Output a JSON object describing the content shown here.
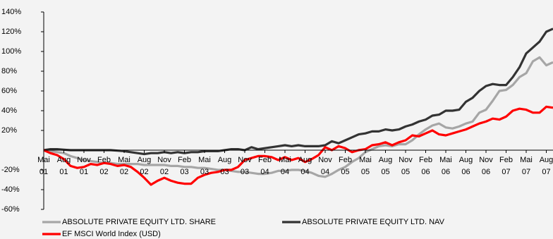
{
  "chart_data": {
    "type": "line",
    "categories": [
      "Mai",
      null,
      null,
      "Aug",
      null,
      null,
      "Nov",
      null,
      null,
      "Feb",
      null,
      null,
      "Mai",
      null,
      null,
      "Aug",
      null,
      null,
      "Nov",
      null,
      null,
      "Feb",
      null,
      null,
      "Mai",
      null,
      null,
      "Aug",
      null,
      null,
      "Nov",
      null,
      null,
      "Feb",
      null,
      null,
      "Mai",
      null,
      null,
      "Aug",
      null,
      null,
      "Nov",
      null,
      null,
      "Feb",
      null,
      null,
      "Mai",
      null,
      null,
      "Aug",
      null,
      null,
      "Nov",
      null,
      null,
      "Feb",
      null,
      null,
      "Mai",
      null,
      null,
      "Aug",
      null,
      null,
      "Nov",
      null,
      null,
      "Feb",
      null,
      null,
      "Mai",
      null,
      null,
      "Aug",
      null
    ],
    "category_years": [
      "01",
      null,
      null,
      "01",
      null,
      null,
      "01",
      null,
      null,
      "02",
      null,
      null,
      "02",
      null,
      null,
      "02",
      null,
      null,
      "02",
      null,
      null,
      "03",
      null,
      null,
      "03",
      null,
      null,
      "03",
      null,
      null,
      "03",
      null,
      null,
      "04",
      null,
      null,
      "04",
      null,
      null,
      "04",
      null,
      null,
      "04",
      null,
      null,
      "05",
      null,
      null,
      "05",
      null,
      null,
      "05",
      null,
      null,
      "05",
      null,
      null,
      "06",
      null,
      null,
      "06",
      null,
      null,
      "06",
      null,
      null,
      "06",
      null,
      null,
      "07",
      null,
      null,
      "07",
      null,
      null,
      "07",
      null
    ],
    "series": [
      {
        "name": "ABSOLUTE PRIVATE EQUITY LTD. SHARE",
        "color": "#a6a6a6",
        "values": [
          0,
          -1,
          -2,
          -3,
          -6,
          -8,
          -10,
          -11,
          -12,
          -13,
          -13,
          -14,
          -14,
          -14,
          -14,
          -15,
          -15,
          -15,
          -15,
          -16,
          -16,
          -17,
          -17,
          -18,
          -18,
          -19,
          -20,
          -20,
          -21,
          -22,
          -22,
          -23,
          -24,
          -24,
          -23,
          -21,
          -21,
          -20,
          -20,
          -21,
          -23,
          -26,
          -27,
          -24,
          -20,
          -17,
          -12,
          -8,
          -2,
          1,
          4,
          5,
          4,
          6,
          6,
          10,
          16,
          21,
          25,
          27,
          23,
          22,
          24,
          27,
          29,
          38,
          41,
          50,
          60,
          61,
          66,
          74,
          78,
          90,
          94,
          86,
          89
        ]
      },
      {
        "name": "ABSOLUTE PRIVATE EQUITY LTD. NAV",
        "color": "#333333",
        "values": [
          0,
          1,
          1,
          0.5,
          0,
          0,
          0,
          0,
          0,
          0,
          0,
          -0.5,
          -1,
          -2,
          -3,
          -4,
          -3,
          -3,
          -2,
          -3,
          -2,
          -3,
          -2,
          -2,
          -1,
          -1,
          -1,
          0,
          1,
          1,
          0,
          3,
          1,
          2,
          3,
          4,
          5,
          4,
          5,
          4,
          4,
          4,
          5,
          9,
          7,
          10,
          13,
          16,
          17,
          19,
          19,
          21,
          20,
          21,
          24,
          26,
          29,
          31,
          35,
          36,
          40,
          40,
          41,
          49,
          53,
          60,
          65,
          67,
          66,
          66,
          74,
          84,
          98,
          104,
          110,
          120,
          123
        ]
      },
      {
        "name": "EF MSCI World Index (USD)",
        "color": "#ff0000",
        "values": [
          0,
          -3,
          -5,
          -9,
          -16,
          -18,
          -17,
          -14,
          -15,
          -13,
          -14,
          -16,
          -15,
          -17,
          -22,
          -28,
          -35,
          -31,
          -28,
          -31,
          -33,
          -34,
          -34,
          -28,
          -25,
          -23,
          -22,
          -20,
          -20,
          -17,
          -10,
          -8,
          -6,
          -6,
          -7,
          -10,
          -7,
          -10,
          -8,
          -12,
          -9,
          -5,
          3,
          0,
          4,
          2,
          -2,
          0,
          1,
          5,
          6,
          8,
          5,
          8,
          10,
          15,
          14,
          17,
          20,
          16,
          15,
          17,
          19,
          21,
          24,
          27,
          29,
          32,
          31,
          34,
          40,
          42,
          41,
          38,
          38,
          44,
          43
        ]
      }
    ],
    "ylim": [
      -60,
      140
    ],
    "yticks": [
      {
        "value": -60,
        "label": "-60%"
      },
      {
        "value": -40,
        "label": "-40%"
      },
      {
        "value": -20,
        "label": "-20%"
      },
      {
        "value": 20,
        "label": "20%"
      },
      {
        "value": 40,
        "label": "40%"
      },
      {
        "value": 60,
        "label": "60%"
      },
      {
        "value": 80,
        "label": "80%"
      },
      {
        "value": 100,
        "label": "100%"
      },
      {
        "value": 120,
        "label": "120%"
      },
      {
        "value": 140,
        "label": "140%"
      }
    ],
    "legend": "bottom"
  }
}
